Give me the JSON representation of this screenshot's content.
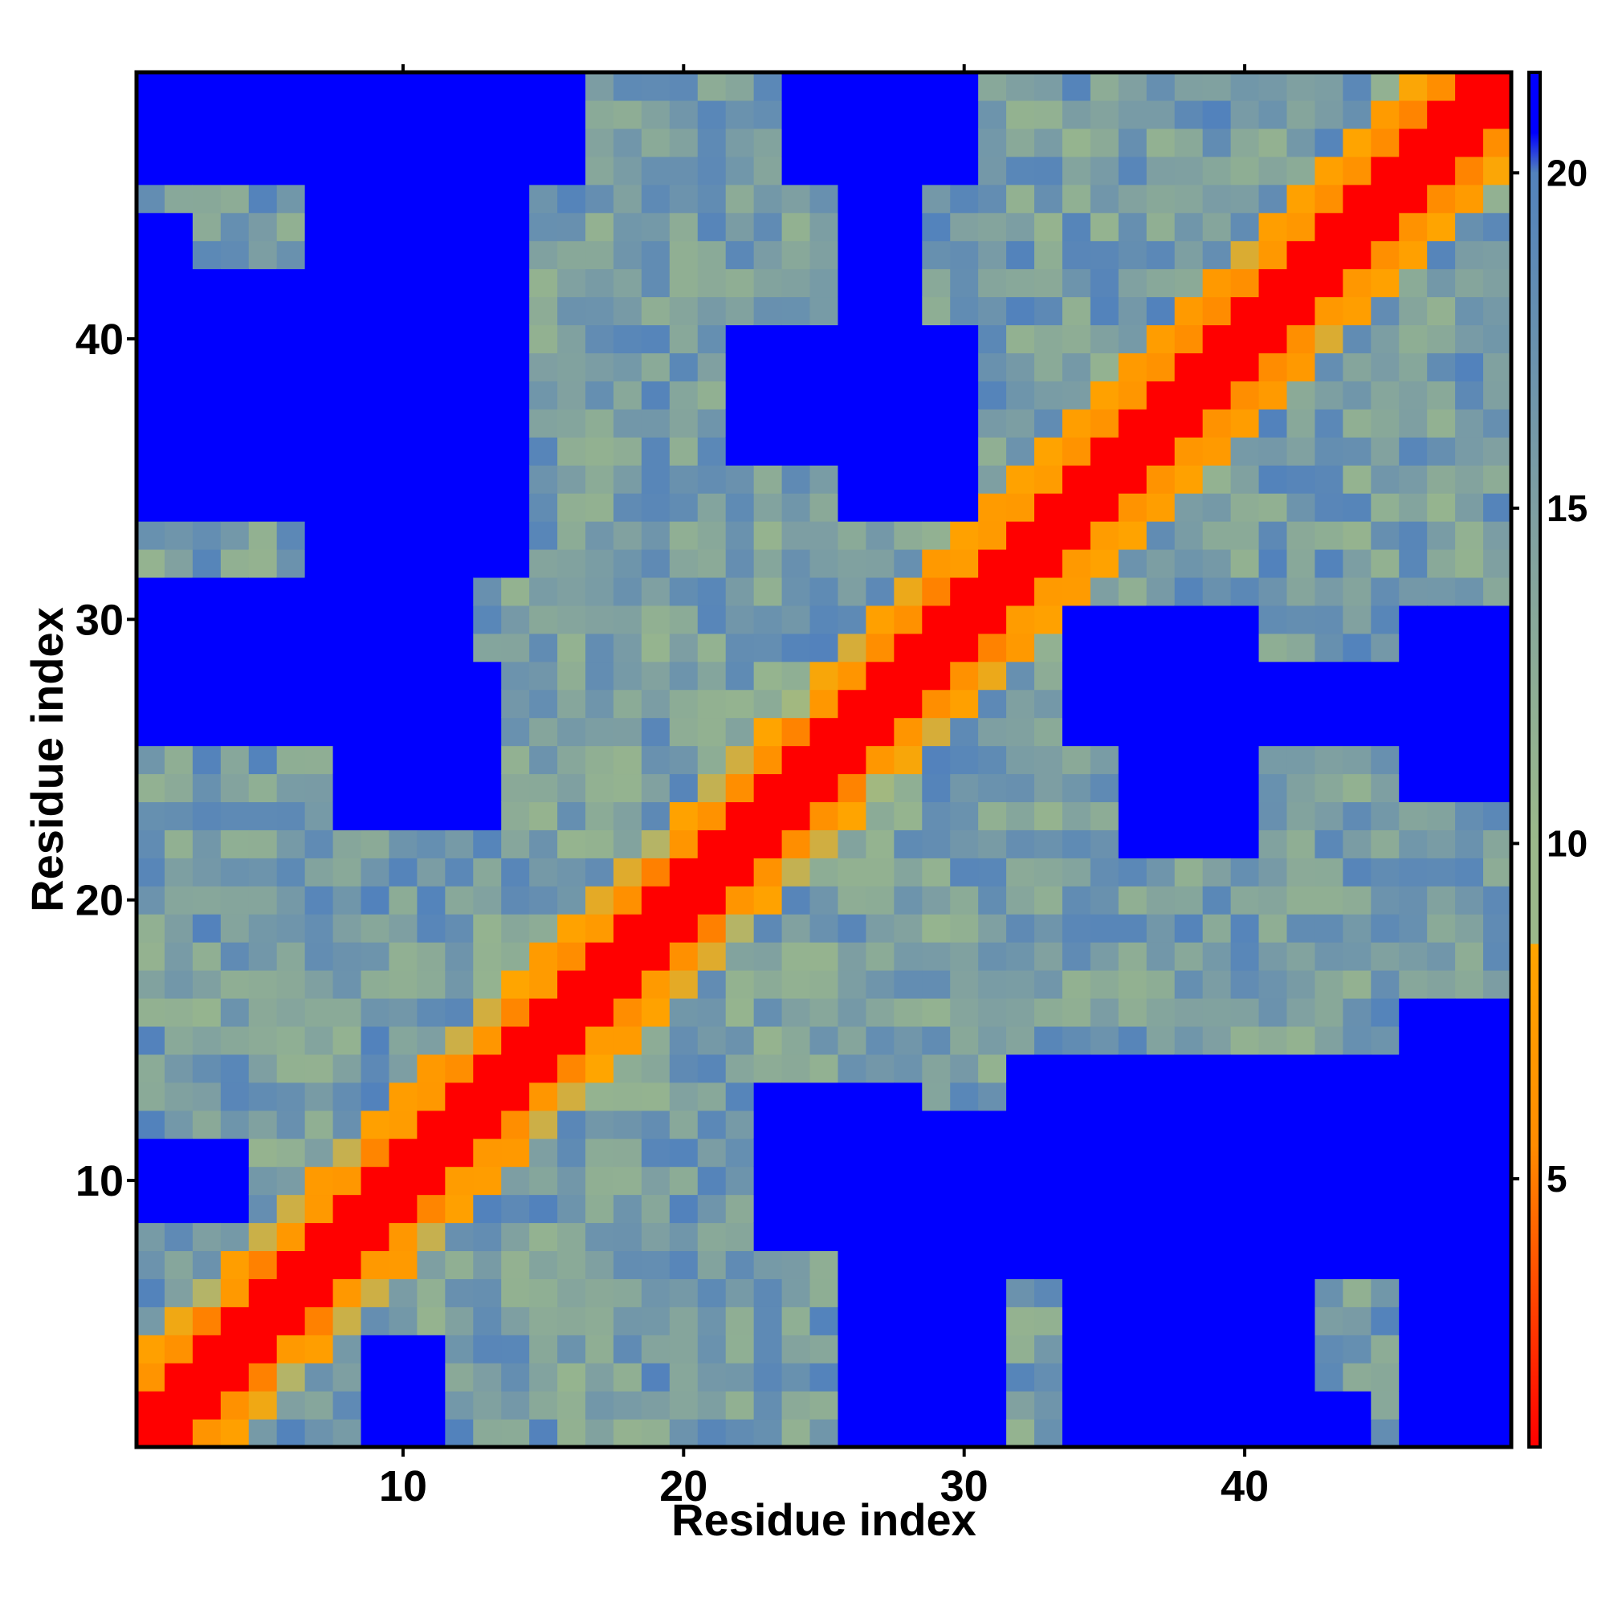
{
  "chart_data": {
    "type": "heatmap",
    "title": "",
    "xlabel": "Residue index",
    "ylabel": "Residue index",
    "n": 49,
    "xlim": [
      0.5,
      49.5
    ],
    "ylim": [
      0.5,
      49.5
    ],
    "x_ticks": [
      10,
      20,
      30,
      40
    ],
    "y_ticks": [
      10,
      20,
      30,
      40
    ],
    "colorbar": {
      "range": [
        1,
        21.5
      ],
      "ticks": [
        5,
        10,
        15,
        20
      ],
      "stops": [
        {
          "value": 1,
          "color": "#ff0000"
        },
        {
          "value": 5.5,
          "color": "#ff8c00"
        },
        {
          "value": 8.5,
          "color": "#ffa500"
        },
        {
          "value": 10,
          "color": "#9bb98a"
        },
        {
          "value": 15,
          "color": "#7e9fa2"
        },
        {
          "value": 20,
          "color": "#5282bc"
        },
        {
          "value": 20.6,
          "color": "#0000ff"
        }
      ]
    },
    "description_of_values": "Pairwise residue distance map (symmetric); diagonal |i-j|<=1 red",
    "clusters": [
      {
        "x_range": [
          7,
          14
        ],
        "y_range": [
          32,
          45
        ],
        "value": 21
      },
      {
        "x_range": [
          26,
          30
        ],
        "y_range": [
          34,
          40
        ],
        "value": 21
      },
      {
        "x_range": [
          26,
          28
        ],
        "y_range": [
          41,
          49
        ],
        "value": 21
      },
      {
        "x_range": [
          7,
          12
        ],
        "y_range": [
          45,
          49
        ],
        "value": 21
      },
      {
        "x_range": [
          1,
          2
        ],
        "y_range": [
          34,
          44
        ],
        "value": 21
      },
      {
        "x_range": [
          8,
          13
        ],
        "y_range": [
          23,
          28
        ],
        "value": 21
      },
      {
        "x_range": [
          26,
          31
        ],
        "y_range": [
          1,
          12
        ],
        "value": 21
      },
      {
        "x_range": [
          34,
          42
        ],
        "y_range": [
          1,
          13
        ],
        "value": 21
      },
      {
        "x_range": [
          36,
          40
        ],
        "y_range": [
          22,
          28
        ],
        "value": 21
      },
      {
        "x_range": [
          46,
          49
        ],
        "y_range": [
          1,
          16
        ],
        "value": 21
      },
      {
        "x_range": [
          46,
          49
        ],
        "y_range": [
          24,
          30
        ],
        "value": 21
      },
      {
        "x_range": [
          1,
          3
        ],
        "y_range": [
          9,
          11
        ],
        "value": 21
      },
      {
        "x_range": [
          9,
          11
        ],
        "y_range": [
          2,
          4
        ],
        "value": 21
      }
    ]
  }
}
